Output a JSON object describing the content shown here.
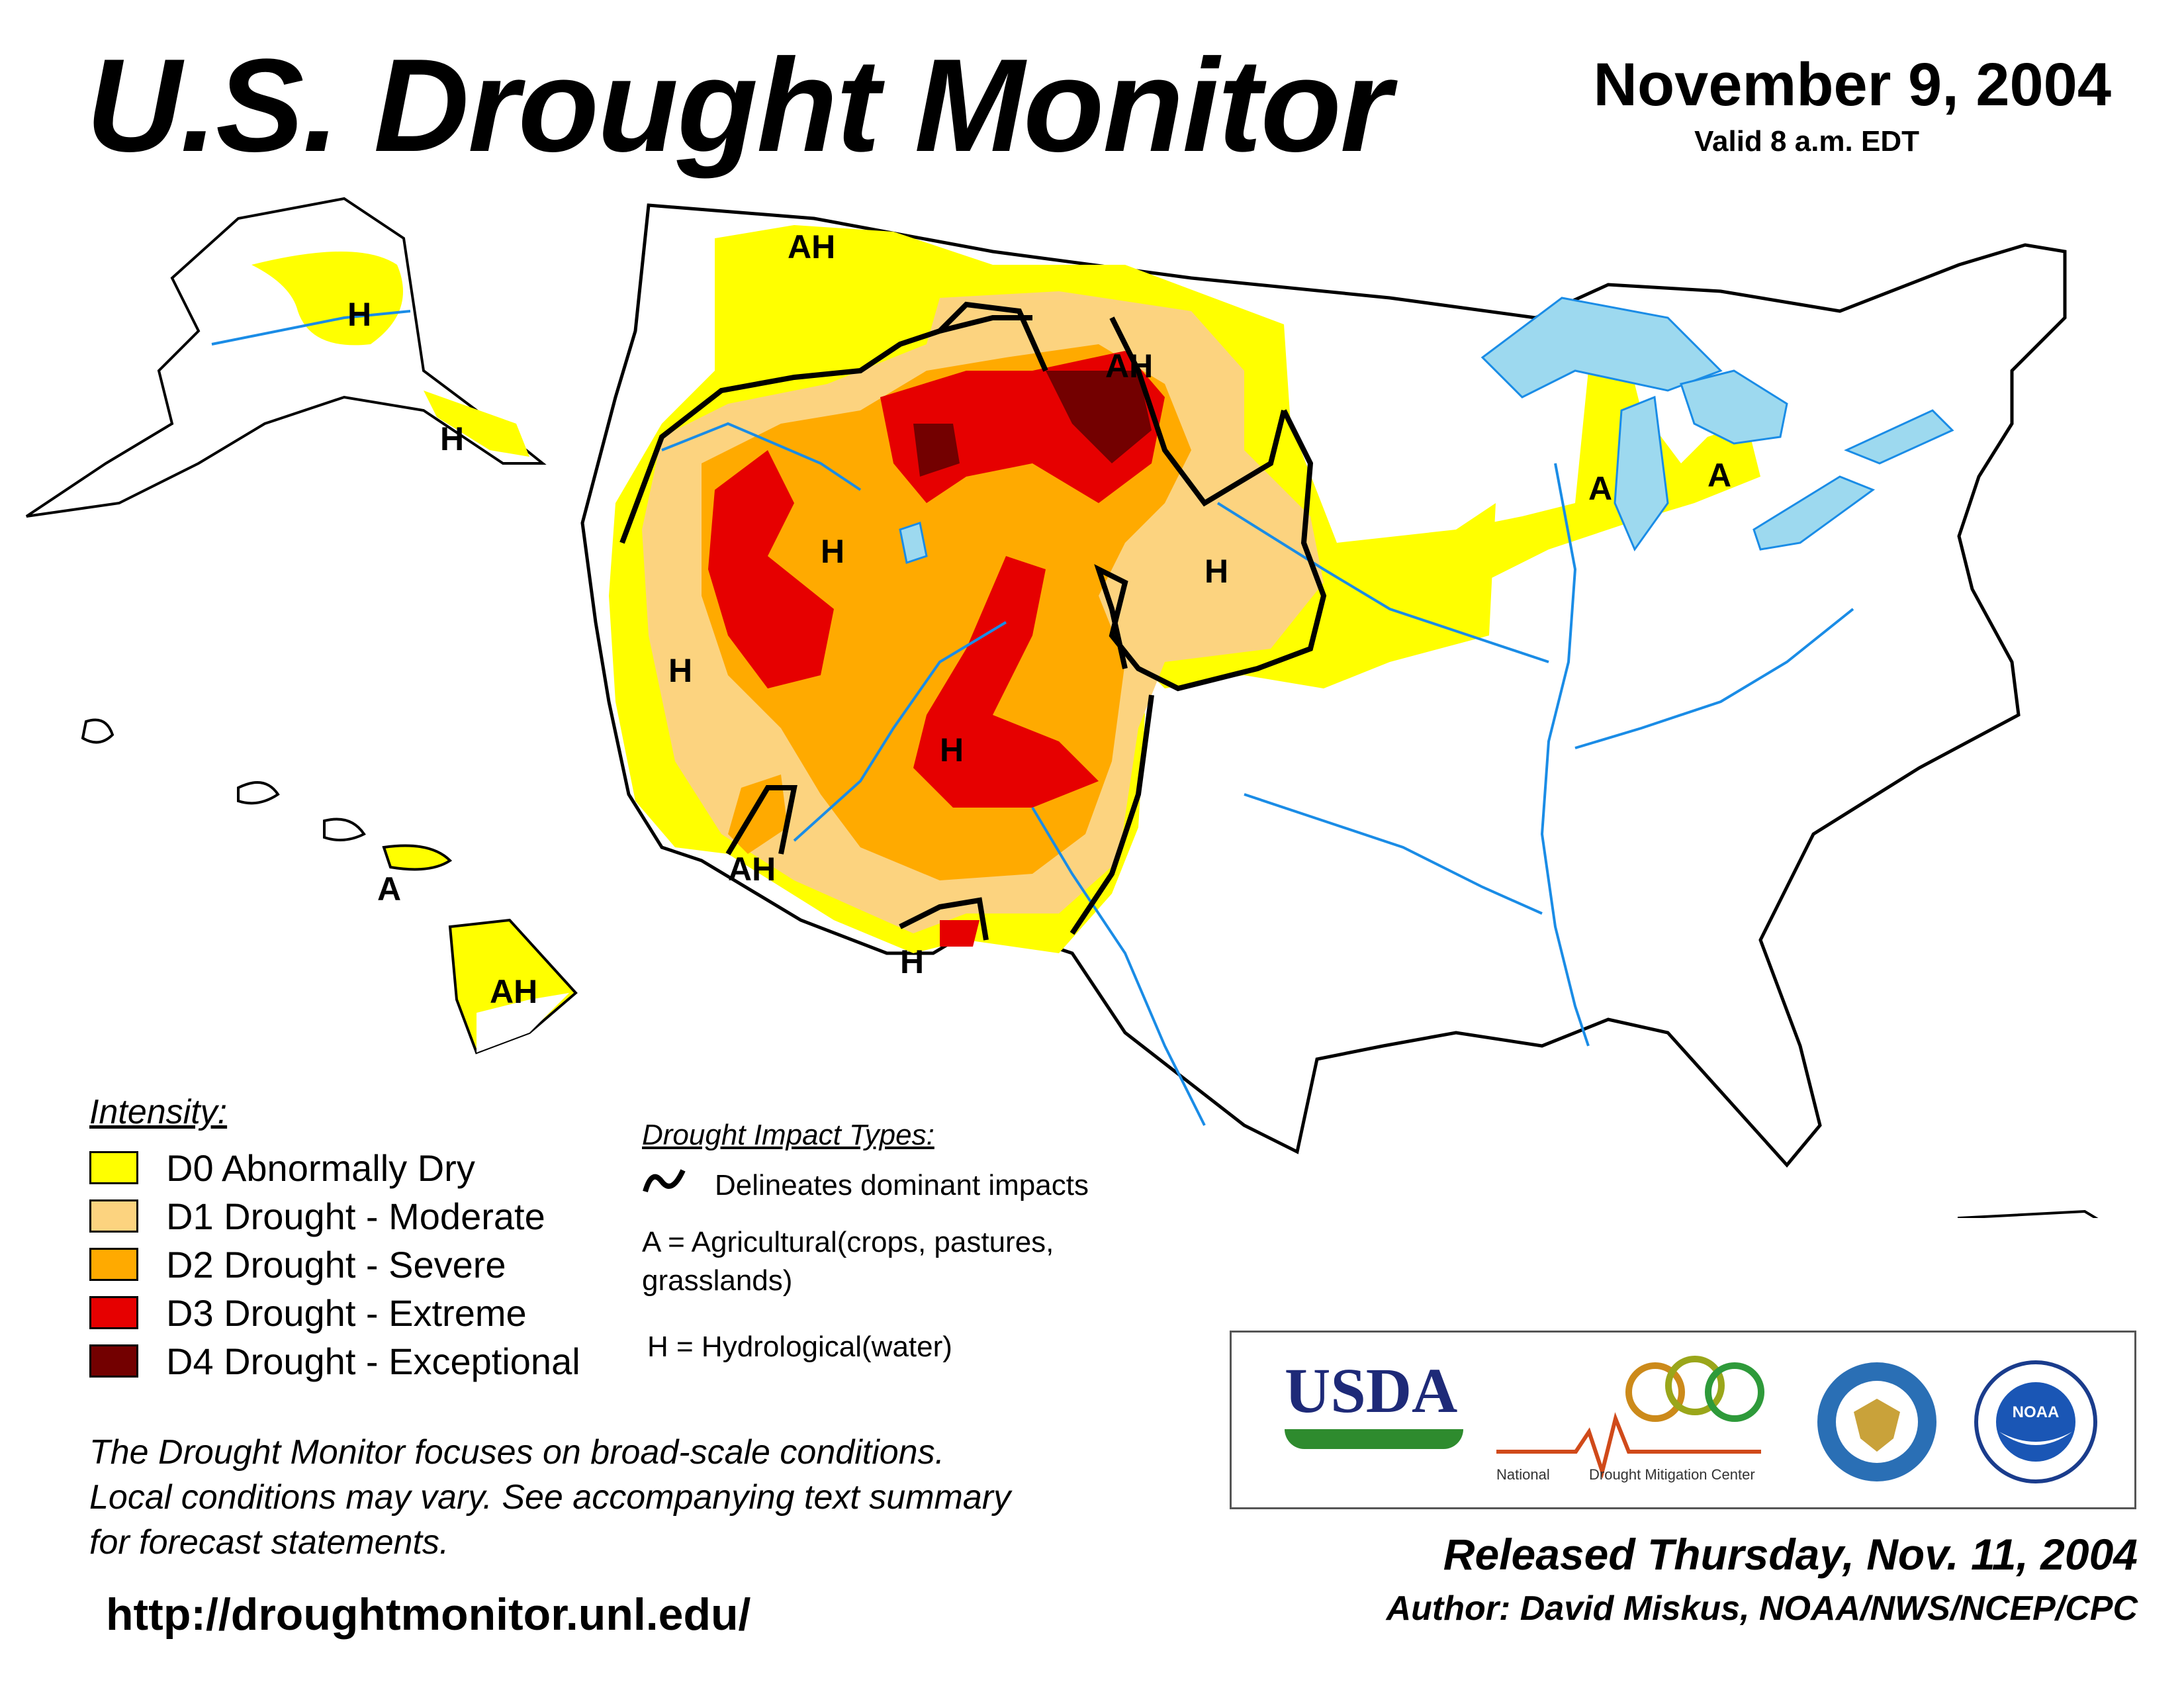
{
  "header": {
    "title": "U.S. Drought Monitor",
    "date": "November 9, 2004",
    "valid": "Valid 8 a.m. EDT"
  },
  "map": {
    "impact_labels": [
      "H",
      "H",
      "AH",
      "H",
      "H",
      "H",
      "H",
      "H",
      "AH",
      "AH",
      "A",
      "A",
      "A",
      "AH"
    ]
  },
  "legend": {
    "heading": "Intensity:",
    "items": [
      {
        "label": "D0 Abnormally Dry",
        "color": "#ffff00"
      },
      {
        "label": "D1 Drought - Moderate",
        "color": "#fcd37f"
      },
      {
        "label": "D2 Drought - Severe",
        "color": "#ffaa00"
      },
      {
        "label": "D3 Drought - Extreme",
        "color": "#e60000"
      },
      {
        "label": "D4 Drought - Exceptional",
        "color": "#730000"
      }
    ]
  },
  "impacts": {
    "heading": "Drought Impact Types:",
    "line_label": "Delineates dominant impacts",
    "agricultural_line1": "A = Agricultural(crops, pastures,",
    "agricultural_line2": "grasslands)",
    "hydrological": "H = Hydrological(water)"
  },
  "footnote": {
    "line1": "The Drought Monitor focuses on broad-scale conditions.",
    "line2": "Local conditions may vary. See accompanying text summary",
    "line3": "for forecast statements."
  },
  "url": "http://droughtmonitor.unl.edu/",
  "logos": {
    "usda": "USDA",
    "ndmc_line1": "National",
    "ndmc_line2": "Drought Mitigation Center",
    "noaa": "NOAA"
  },
  "released": "Released Thursday, Nov. 11, 2004",
  "author": "Author: David Miskus, NOAA/NWS/NCEP/CPC",
  "colors": {
    "water": "#9dd9ef",
    "rivers": "#1a8ce6",
    "boundaries": "#9a9a9a",
    "outline": "#000000"
  }
}
